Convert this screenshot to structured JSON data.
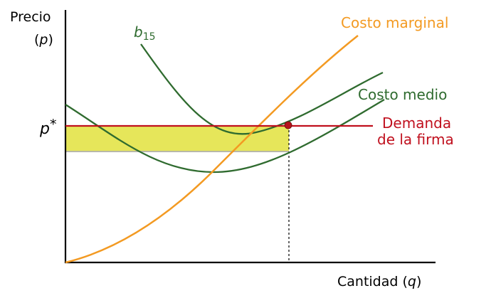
{
  "axes": {
    "y_label_line1": "Precio",
    "y_label_paren_open": "(",
    "y_label_var": "p",
    "y_label_paren_close": ")",
    "x_label_text": "Cantidad (",
    "x_label_var": "q",
    "x_label_close": ")",
    "p_star_var": "p",
    "p_star_sup": "*"
  },
  "curves": {
    "b15_var": "b",
    "b15_sub": "15",
    "marginal_cost": "Costo marginal",
    "average_cost": "Costo medio",
    "demand_line1": "Demanda",
    "demand_line2": "de la firma"
  },
  "colors": {
    "axis": "#000000",
    "marginal_cost": "#F39A22",
    "average_cost": "#2F6B2F",
    "demand": "#C0101E",
    "profit_area": "#E6E65A",
    "point": "#B5141C"
  }
}
